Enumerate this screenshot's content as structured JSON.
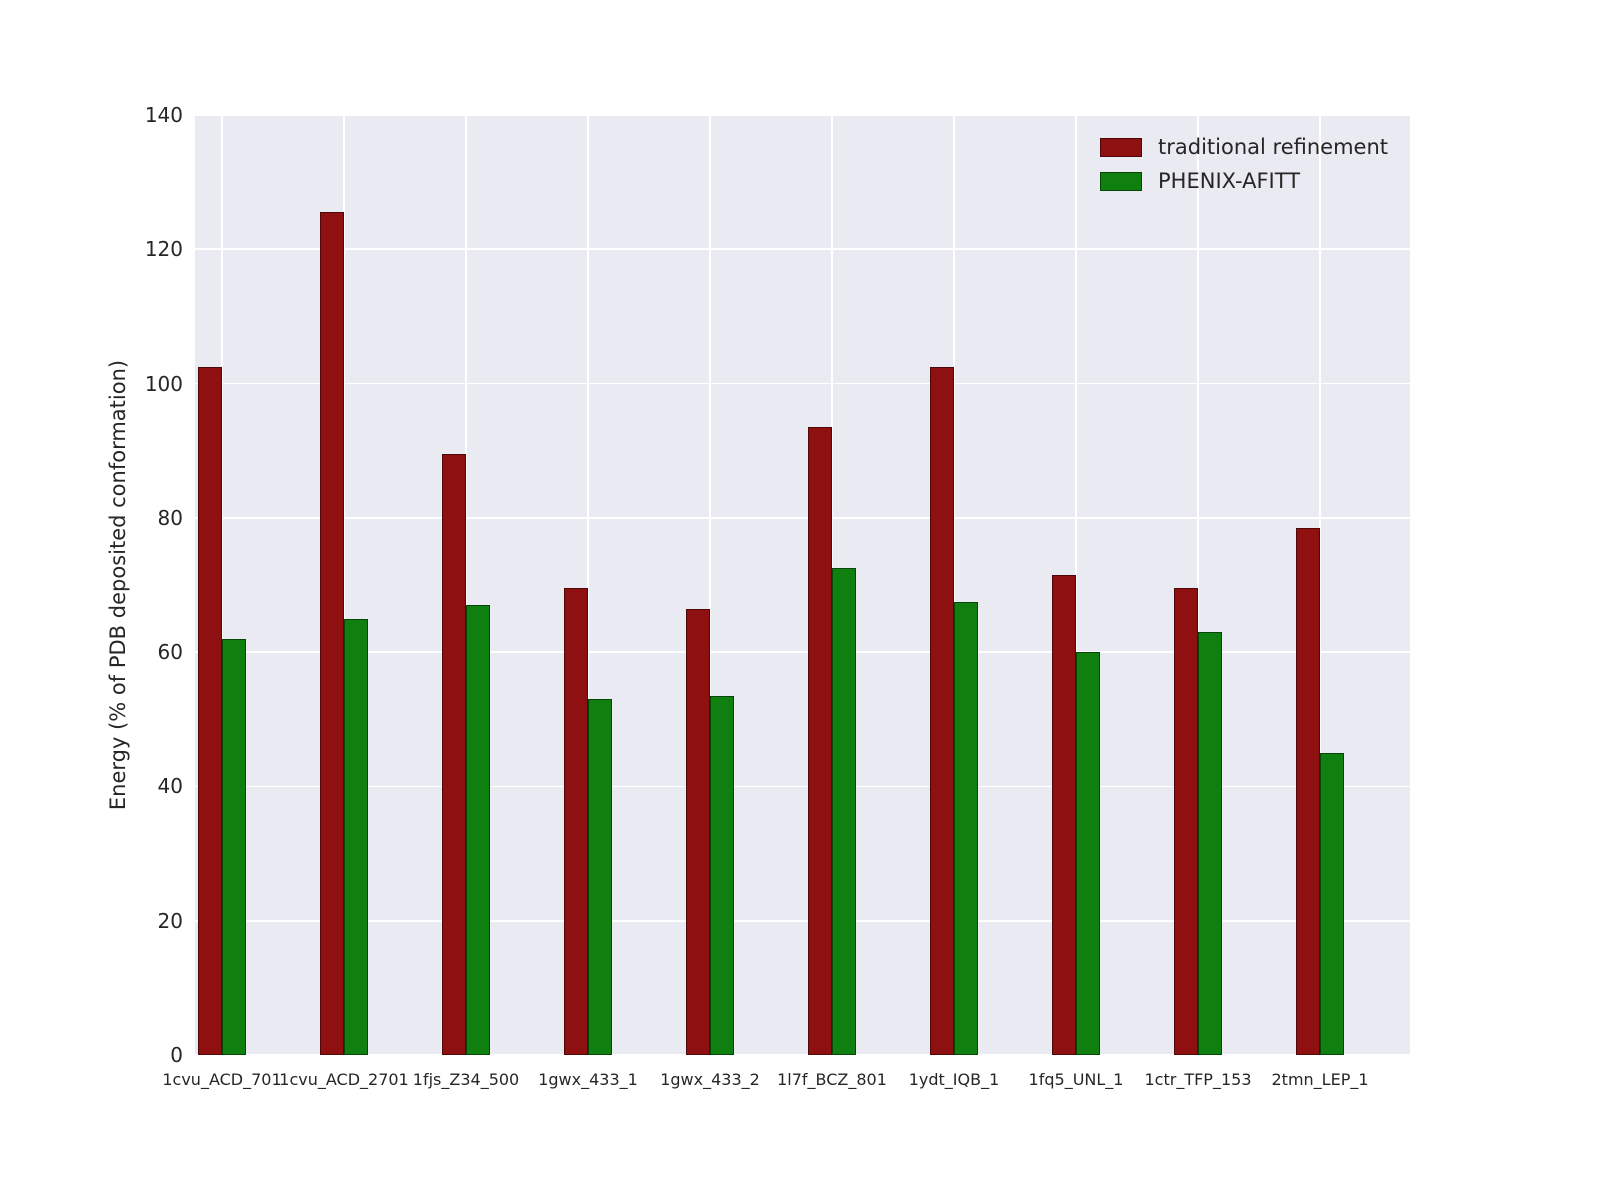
{
  "figure": {
    "background": "#ffffff",
    "axes_background": "#eaeaf2",
    "grid_color": "#ffffff",
    "text_color": "#262626"
  },
  "chart_data": {
    "type": "bar",
    "title": "",
    "xlabel": "",
    "ylabel": "Energy (% of PDB deposited conformation)",
    "ylim": [
      0,
      140
    ],
    "yticks": [
      0,
      20,
      40,
      60,
      80,
      100,
      120,
      140
    ],
    "grid": true,
    "legend_position": "upper right",
    "categories": [
      "1cvu_ACD_701",
      "1cvu_ACD_2701",
      "1fjs_Z34_500",
      "1gwx_433_1",
      "1gwx_433_2",
      "1l7f_BCZ_801",
      "1ydt_IQB_1",
      "1fq5_UNL_1",
      "1ctr_TFP_153",
      "2tmn_LEP_1"
    ],
    "series": [
      {
        "name": "traditional refinement",
        "color": "#8e1010",
        "values": [
          102.5,
          125.5,
          89.5,
          69.5,
          66.5,
          93.5,
          102.5,
          71.5,
          69.5,
          78.5
        ]
      },
      {
        "name": "PHENIX-AFITT",
        "color": "#0f7f0f",
        "values": [
          62,
          65,
          67,
          53,
          53.5,
          72.5,
          67.5,
          60,
          63,
          45
        ]
      }
    ]
  }
}
